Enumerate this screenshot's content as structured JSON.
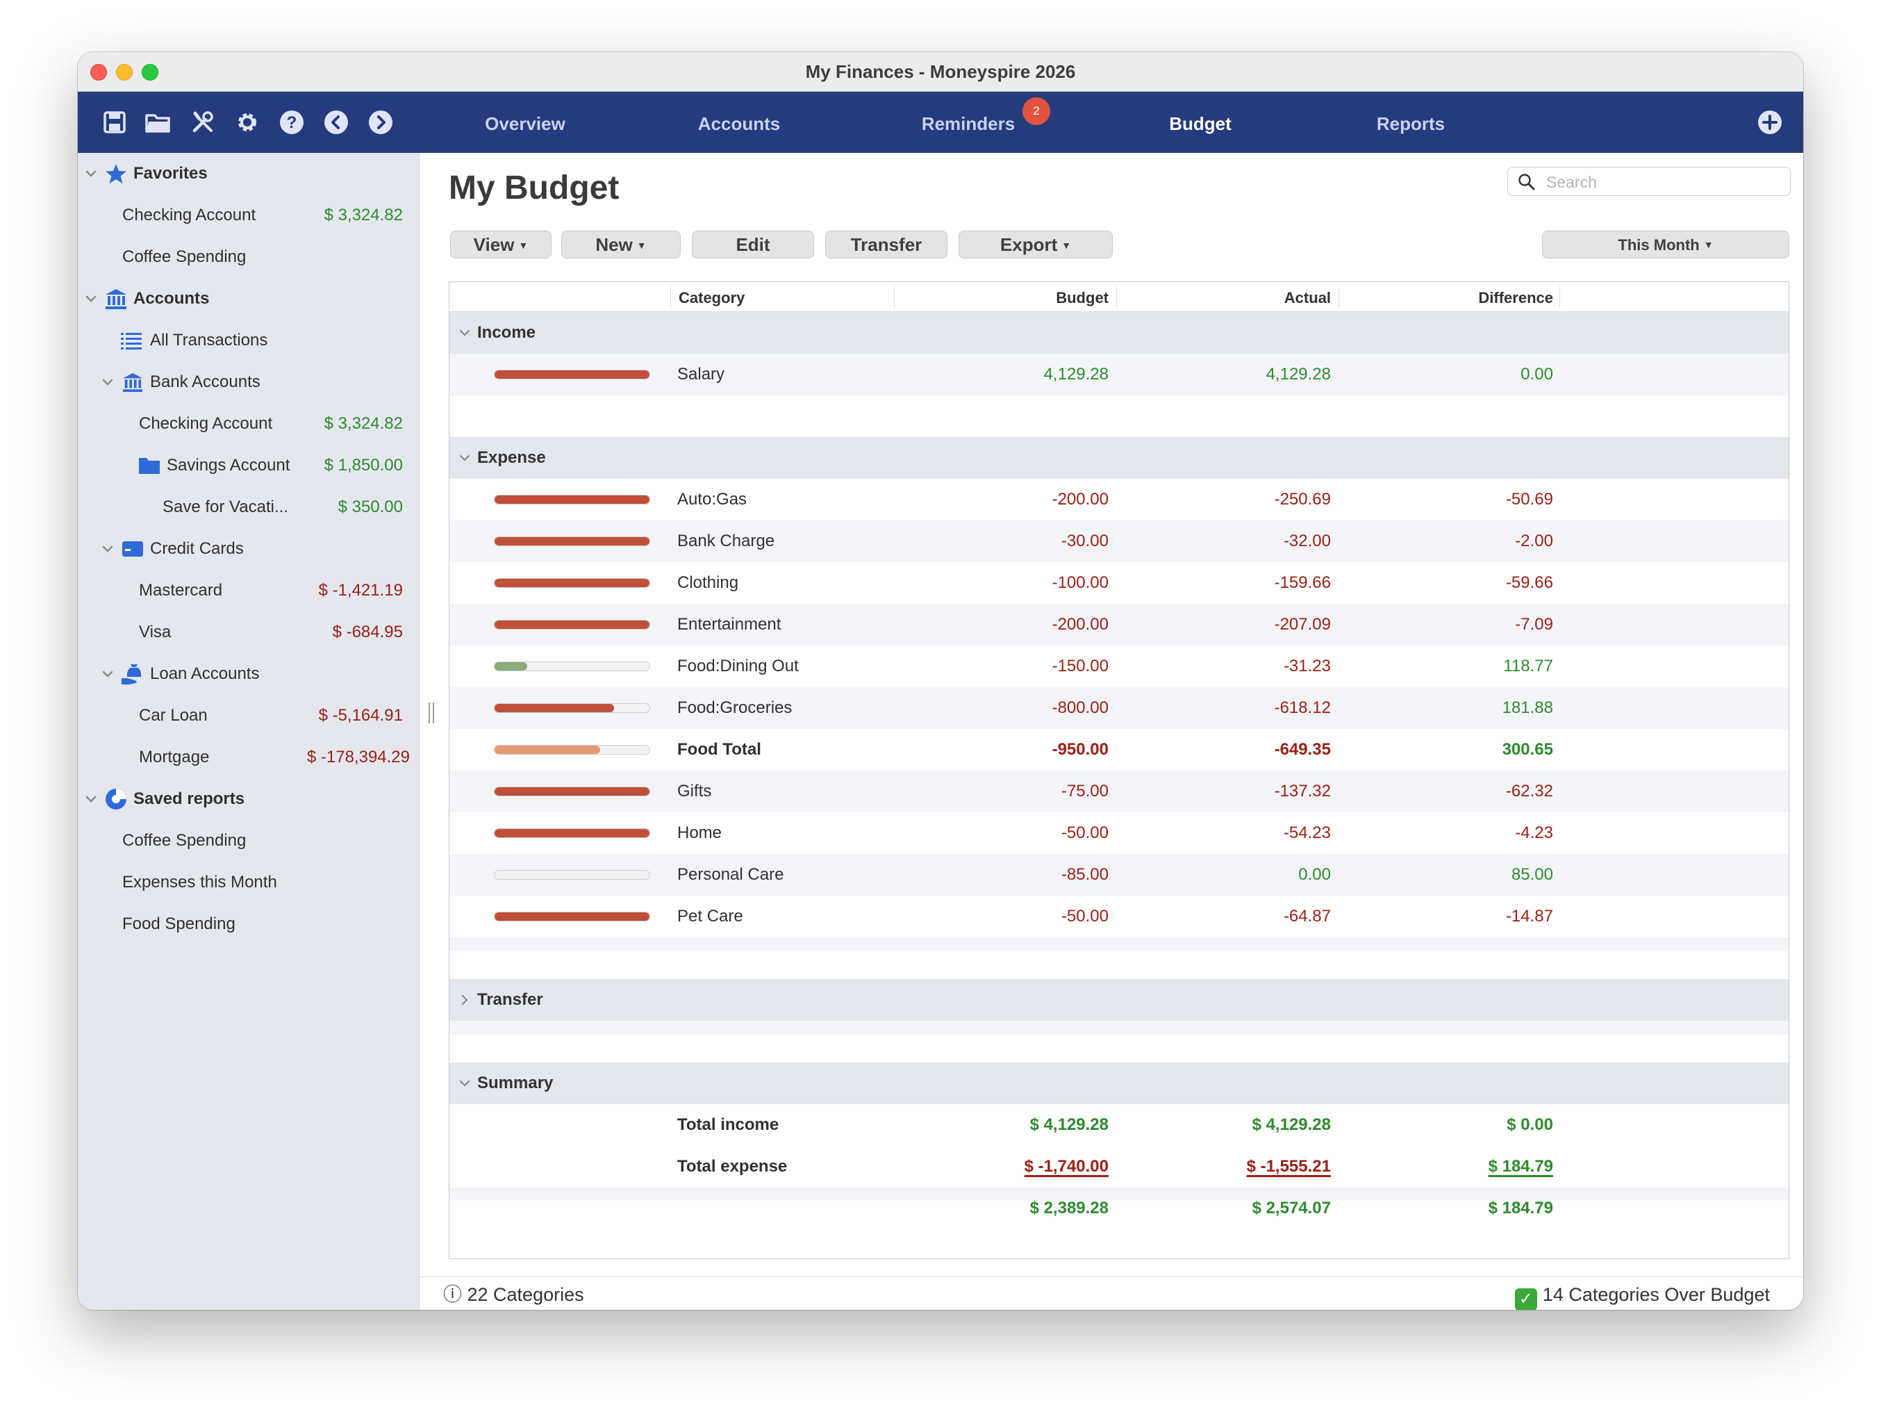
{
  "window": {
    "title": "My Finances - Moneyspire 2026"
  },
  "toolbar": {
    "icons": [
      "save-icon",
      "folder-icon",
      "tools-icon",
      "gear-icon",
      "help-icon",
      "back-icon",
      "forward-icon",
      "add-icon"
    ],
    "tabs": [
      {
        "label": "Overview"
      },
      {
        "label": "Accounts"
      },
      {
        "label": "Reminders",
        "badge": "2"
      },
      {
        "label": "Budget",
        "active": true
      },
      {
        "label": "Reports"
      }
    ]
  },
  "sidebar": {
    "favorites": {
      "title": "Favorites",
      "items": [
        {
          "label": "Checking Account",
          "amount": "$ 3,324.82"
        },
        {
          "label": "Coffee Spending"
        }
      ]
    },
    "accounts": {
      "title": "Accounts",
      "all_transactions": "All Transactions",
      "bank_accounts": {
        "title": "Bank Accounts",
        "items": [
          {
            "label": "Checking Account",
            "amount": "$ 3,324.82"
          },
          {
            "label": "Savings Account",
            "amount": "$ 1,850.00"
          },
          {
            "label": "Save for Vacati...",
            "amount": "$ 350.00"
          }
        ]
      },
      "credit_cards": {
        "title": "Credit Cards",
        "items": [
          {
            "label": "Mastercard",
            "amount": "$ -1,421.19"
          },
          {
            "label": "Visa",
            "amount": "$ -684.95"
          }
        ]
      },
      "loan_accounts": {
        "title": "Loan Accounts",
        "items": [
          {
            "label": "Car Loan",
            "amount": "$ -5,164.91"
          },
          {
            "label": "Mortgage",
            "amount": "$ -178,394.29"
          }
        ]
      }
    },
    "saved_reports": {
      "title": "Saved reports",
      "items": [
        "Coffee Spending",
        "Expenses this Month",
        "Food Spending"
      ]
    }
  },
  "main": {
    "title": "My Budget",
    "search_placeholder": "Search",
    "buttons": {
      "view": "View",
      "new": "New",
      "edit": "Edit",
      "transfer": "Transfer",
      "export": "Export",
      "period": "This Month"
    },
    "columns": {
      "category": "Category",
      "budget": "Budget",
      "actual": "Actual",
      "difference": "Difference"
    },
    "groups": {
      "income": "Income",
      "expense": "Expense",
      "transfer": "Transfer",
      "summary": "Summary"
    },
    "income_rows": [
      {
        "category": "Salary",
        "budget": "4,129.28",
        "actual": "4,129.28",
        "difference": "0.00",
        "progress": 1.0,
        "bar_color": "#c0503a"
      }
    ],
    "expense_rows": [
      {
        "category": "Auto:Gas",
        "budget": "-200.00",
        "actual": "-250.69",
        "difference": "-50.69",
        "progress": 1.0,
        "bar_color": "#c0503a"
      },
      {
        "category": "Bank Charge",
        "budget": "-30.00",
        "actual": "-32.00",
        "difference": "-2.00",
        "progress": 1.0,
        "bar_color": "#c0503a"
      },
      {
        "category": "Clothing",
        "budget": "-100.00",
        "actual": "-159.66",
        "difference": "-59.66",
        "progress": 1.0,
        "bar_color": "#c0503a"
      },
      {
        "category": "Entertainment",
        "budget": "-200.00",
        "actual": "-207.09",
        "difference": "-7.09",
        "progress": 1.0,
        "bar_color": "#c0503a"
      },
      {
        "category": "Food:Dining Out",
        "budget": "-150.00",
        "actual": "-31.23",
        "difference": "118.77",
        "progress": 0.21,
        "bar_color": "#8aab7a"
      },
      {
        "category": "Food:Groceries",
        "budget": "-800.00",
        "actual": "-618.12",
        "difference": "181.88",
        "progress": 0.77,
        "bar_color": "#c0503a"
      },
      {
        "category": "Food Total",
        "budget": "-950.00",
        "actual": "-649.35",
        "difference": "300.65",
        "progress": 0.68,
        "bar_color": "#e29b74",
        "bold": true
      },
      {
        "category": "Gifts",
        "budget": "-75.00",
        "actual": "-137.32",
        "difference": "-62.32",
        "progress": 1.0,
        "bar_color": "#c0503a"
      },
      {
        "category": "Home",
        "budget": "-50.00",
        "actual": "-54.23",
        "difference": "-4.23",
        "progress": 1.0,
        "bar_color": "#c0503a"
      },
      {
        "category": "Personal Care",
        "budget": "-85.00",
        "actual": "0.00",
        "difference": "85.00",
        "progress": 0.0,
        "bar_color": "#c0503a"
      },
      {
        "category": "Pet Care",
        "budget": "-50.00",
        "actual": "-64.87",
        "difference": "-14.87",
        "progress": 1.0,
        "bar_color": "#c0503a"
      }
    ],
    "summary": {
      "total_income": {
        "label": "Total income",
        "budget": "$ 4,129.28",
        "actual": "$ 4,129.28",
        "difference": "$ 0.00"
      },
      "total_expense": {
        "label": "Total expense",
        "budget": "$ -1,740.00",
        "actual": "$ -1,555.21",
        "difference": "$ 184.79"
      },
      "net": {
        "budget": "$ 2,389.28",
        "actual": "$ 2,574.07",
        "difference": "$ 184.79"
      }
    }
  },
  "status": {
    "left": "ⓘ 22 Categories",
    "right": "14 Categories Over Budget"
  },
  "colors": {
    "toolbar": "#263a7e",
    "positive": "#2e8b2e",
    "negative": "#9b1f15",
    "accent_bar": "#c0503a"
  }
}
